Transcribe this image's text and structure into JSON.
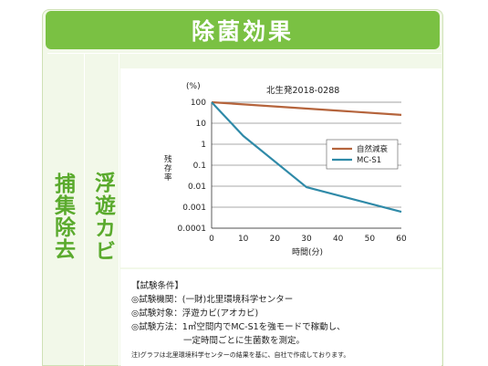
{
  "header": {
    "title": "除菌効果"
  },
  "left_label": {
    "category": "捕集除去",
    "target": "浮遊カビ"
  },
  "chart_data": {
    "type": "line",
    "title": "北生発2018-0288",
    "ylabel": "残存率",
    "yunit": "(%)",
    "xlabel": "時間(分)",
    "y_scale": "log",
    "ylim": [
      0.0001,
      100
    ],
    "xlim": [
      0,
      60
    ],
    "x_ticks": [
      0,
      10,
      20,
      30,
      40,
      50,
      60
    ],
    "y_ticks": [
      "100",
      "10",
      "1",
      "0.1",
      "0.01",
      "0.001",
      "0.0001"
    ],
    "y_tick_values": [
      100,
      10,
      1,
      0.1,
      0.01,
      0.001,
      0.0001
    ],
    "legend_position": "right",
    "series": [
      {
        "name": "自然減衰",
        "color": "#b5643c",
        "x": [
          0,
          60
        ],
        "y": [
          100,
          25
        ]
      },
      {
        "name": "MC-S1",
        "color": "#2f8aa8",
        "x": [
          0,
          10,
          30,
          60
        ],
        "y": [
          100,
          2.5,
          0.009,
          0.0006
        ]
      }
    ]
  },
  "conditions": {
    "heading": "【試験条件】",
    "lines": [
      "◎試験機関：(一財)北里環境科学センター",
      "◎試験対象：浮遊カビ(アオカビ)",
      "◎試験方法：1㎥空間内でMC-S1を強モードで稼動し、",
      "　　　　　　一定時間ごとに生菌数を測定。"
    ],
    "note": "注)グラフは北里環境科学センターの結果を基に、自社で作成しております。"
  }
}
